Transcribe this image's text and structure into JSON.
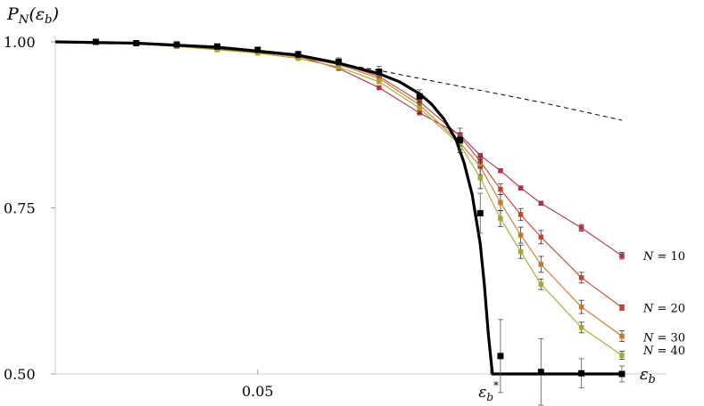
{
  "chart_data": {
    "type": "line",
    "title": "",
    "ylabel": "P_N(ε_b)",
    "xlabel": "ε_b",
    "xlim": [
      0,
      0.14
    ],
    "ylim": [
      0.5,
      1.0
    ],
    "x_ticks": [
      {
        "value": 0.05,
        "label": "0.05"
      },
      {
        "value": 0.1075,
        "label": "ε_b*"
      }
    ],
    "y_ticks": [
      {
        "value": 1.0,
        "label": "1.00"
      },
      {
        "value": 0.75,
        "label": "0.75"
      },
      {
        "value": 0.5,
        "label": "0.50"
      }
    ],
    "grid": false,
    "critical_point": {
      "label": "ε_b*",
      "x": 0.1075
    },
    "series": [
      {
        "name": "N = 10",
        "color": "#b5304a",
        "style": "line-markers",
        "x": [
          0.01,
          0.02,
          0.03,
          0.04,
          0.05,
          0.06,
          0.07,
          0.08,
          0.09,
          0.1,
          0.105,
          0.11,
          0.115,
          0.12,
          0.13,
          0.14
        ],
        "y": [
          0.999,
          0.997,
          0.993,
          0.989,
          0.984,
          0.978,
          0.96,
          0.931,
          0.893,
          0.86,
          0.829,
          0.806,
          0.78,
          0.757,
          0.72,
          0.678
        ],
        "err": [
          0.0,
          0.0,
          0.0,
          0.0,
          0.0,
          0.0,
          0.0,
          0.0,
          0.0,
          0.003,
          0.003,
          0.003,
          0.003,
          0.003,
          0.005,
          0.005
        ]
      },
      {
        "name": "N = 20",
        "color": "#c2452f",
        "style": "line-markers",
        "x": [
          0.01,
          0.02,
          0.03,
          0.04,
          0.05,
          0.06,
          0.07,
          0.08,
          0.09,
          0.1,
          0.105,
          0.11,
          0.115,
          0.12,
          0.13,
          0.14
        ],
        "y": [
          1.0,
          0.998,
          0.995,
          0.991,
          0.987,
          0.98,
          0.968,
          0.948,
          0.91,
          0.858,
          0.82,
          0.778,
          0.74,
          0.706,
          0.645,
          0.6
        ],
        "err": [
          0.0,
          0.0,
          0.0,
          0.0,
          0.0,
          0.0,
          0.0,
          0.0,
          0.0,
          0.005,
          0.007,
          0.008,
          0.009,
          0.01,
          0.008,
          0.004
        ]
      },
      {
        "name": "N = 30",
        "color": "#c27a25",
        "style": "line-markers",
        "x": [
          0.01,
          0.02,
          0.03,
          0.04,
          0.05,
          0.06,
          0.07,
          0.08,
          0.09,
          0.1,
          0.105,
          0.11,
          0.115,
          0.12,
          0.13,
          0.14
        ],
        "y": [
          1.0,
          0.998,
          0.994,
          0.99,
          0.985,
          0.977,
          0.966,
          0.945,
          0.905,
          0.848,
          0.812,
          0.758,
          0.709,
          0.665,
          0.601,
          0.557
        ],
        "err": [
          0.0,
          0.0,
          0.0,
          0.0,
          0.0,
          0.0,
          0.0,
          0.0,
          0.005,
          0.01,
          0.012,
          0.012,
          0.012,
          0.012,
          0.01,
          0.008
        ]
      },
      {
        "name": "N = 40",
        "color": "#a7a82a",
        "style": "line-markers",
        "x": [
          0.01,
          0.02,
          0.03,
          0.04,
          0.05,
          0.06,
          0.07,
          0.08,
          0.09,
          0.1,
          0.105,
          0.11,
          0.115,
          0.12,
          0.13,
          0.14
        ],
        "y": [
          1.0,
          0.997,
          0.993,
          0.988,
          0.983,
          0.975,
          0.962,
          0.94,
          0.9,
          0.845,
          0.795,
          0.734,
          0.684,
          0.635,
          0.57,
          0.528
        ],
        "err": [
          0.0,
          0.0,
          0.0,
          0.0,
          0.0,
          0.0,
          0.0,
          0.0,
          0.008,
          0.012,
          0.016,
          0.012,
          0.01,
          0.008,
          0.008,
          0.006
        ]
      },
      {
        "name": "ε_b",
        "color": "#000000",
        "style": "thick-line-markers",
        "x": [
          0.01,
          0.02,
          0.03,
          0.04,
          0.05,
          0.06,
          0.07,
          0.08,
          0.09,
          0.1,
          0.105,
          0.11,
          0.12,
          0.13,
          0.14
        ],
        "y": [
          1.0,
          0.998,
          0.996,
          0.993,
          0.988,
          0.981,
          0.97,
          0.955,
          0.918,
          0.852,
          0.742,
          0.527,
          0.503,
          0.501,
          0.5
        ],
        "err": [
          0.002,
          0.002,
          0.003,
          0.004,
          0.004,
          0.005,
          0.006,
          0.008,
          0.01,
          0.018,
          0.03,
          0.055,
          0.05,
          0.022,
          0.012
        ],
        "curve": {
          "x": [
            0.0,
            0.02,
            0.04,
            0.06,
            0.07,
            0.08,
            0.085,
            0.09,
            0.093,
            0.096,
            0.099,
            0.101,
            0.103,
            0.105,
            0.106,
            0.107,
            0.108,
            0.14
          ],
          "y": [
            1.0,
            0.998,
            0.992,
            0.98,
            0.968,
            0.952,
            0.94,
            0.922,
            0.906,
            0.884,
            0.853,
            0.818,
            0.77,
            0.695,
            0.635,
            0.56,
            0.5,
            0.5
          ]
        }
      },
      {
        "name": "",
        "color": "#000000",
        "style": "dashed",
        "x": [
          0.0,
          0.02,
          0.04,
          0.06,
          0.08,
          0.1,
          0.12,
          0.14
        ],
        "y": [
          1.0,
          0.997,
          0.99,
          0.978,
          0.957,
          0.933,
          0.909,
          0.882
        ]
      }
    ]
  }
}
